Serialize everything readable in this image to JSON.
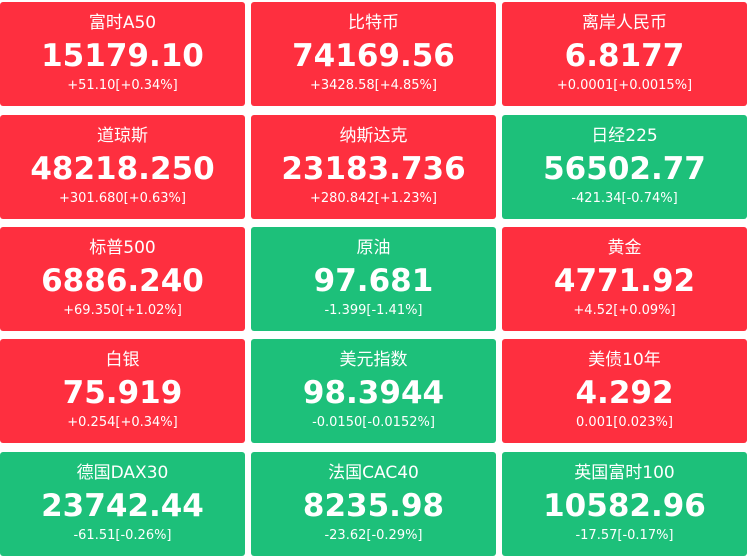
{
  "colors": {
    "up": "#fe2f3f",
    "down": "#1dc07a",
    "text": "#ffffff"
  },
  "tiles": [
    {
      "name": "富时A50",
      "price": "15179.10",
      "change": "+51.10[+0.34%]",
      "trend": "up"
    },
    {
      "name": "比特币",
      "price": "74169.56",
      "change": "+3428.58[+4.85%]",
      "trend": "up"
    },
    {
      "name": "离岸人民币",
      "price": "6.8177",
      "change": "+0.0001[+0.0015%]",
      "trend": "up"
    },
    {
      "name": "道琼斯",
      "price": "48218.250",
      "change": "+301.680[+0.63%]",
      "trend": "up"
    },
    {
      "name": "纳斯达克",
      "price": "23183.736",
      "change": "+280.842[+1.23%]",
      "trend": "up"
    },
    {
      "name": "日经225",
      "price": "56502.77",
      "change": "-421.34[-0.74%]",
      "trend": "down"
    },
    {
      "name": "标普500",
      "price": "6886.240",
      "change": "+69.350[+1.02%]",
      "trend": "up"
    },
    {
      "name": "原油",
      "price": "97.681",
      "change": "-1.399[-1.41%]",
      "trend": "down"
    },
    {
      "name": "黄金",
      "price": "4771.92",
      "change": "+4.52[+0.09%]",
      "trend": "up"
    },
    {
      "name": "白银",
      "price": "75.919",
      "change": "+0.254[+0.34%]",
      "trend": "up"
    },
    {
      "name": "美元指数",
      "price": "98.3944",
      "change": "-0.0150[-0.0152%]",
      "trend": "down"
    },
    {
      "name": "美债10年",
      "price": "4.292",
      "change": "0.001[0.023%]",
      "trend": "up"
    },
    {
      "name": "德国DAX30",
      "price": "23742.44",
      "change": "-61.51[-0.26%]",
      "trend": "down"
    },
    {
      "name": "法国CAC40",
      "price": "8235.98",
      "change": "-23.62[-0.29%]",
      "trend": "down"
    },
    {
      "name": "英国富时100",
      "price": "10582.96",
      "change": "-17.57[-0.17%]",
      "trend": "down"
    }
  ]
}
